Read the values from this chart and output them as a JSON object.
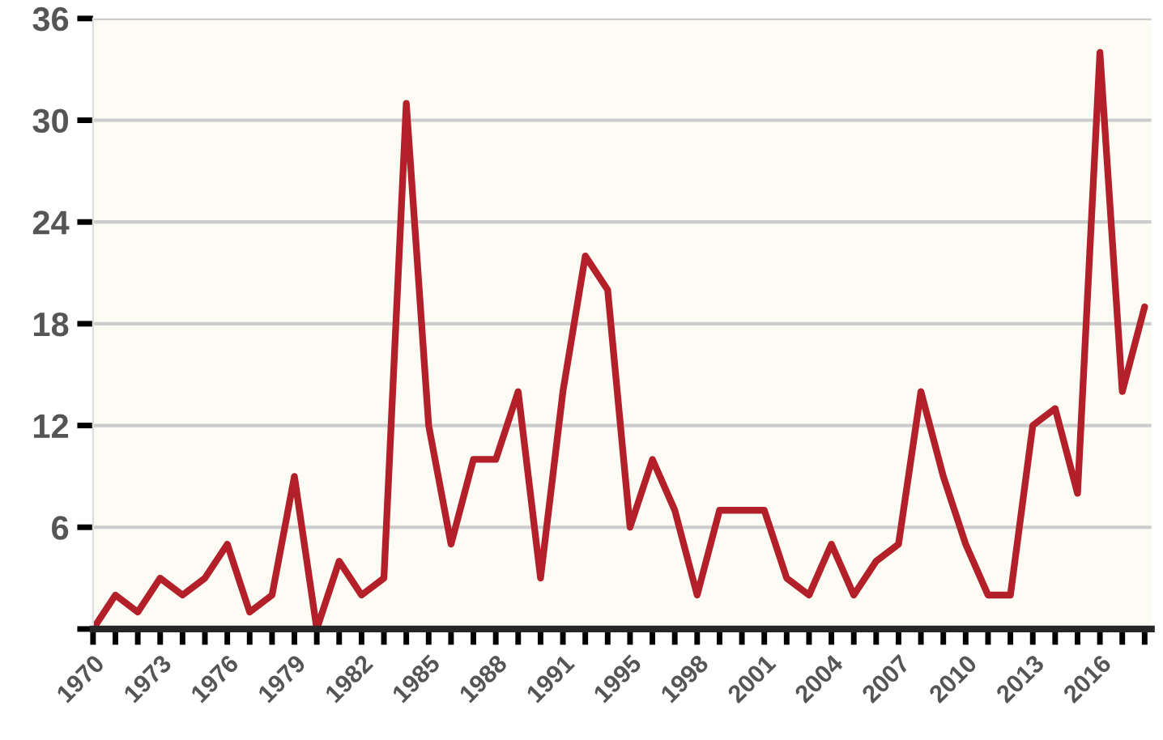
{
  "chart_data": {
    "type": "line",
    "categories": [
      "1970",
      null,
      null,
      "1973",
      null,
      null,
      "1976",
      null,
      null,
      "1979",
      null,
      null,
      "1982",
      null,
      null,
      "1985",
      null,
      null,
      "1988",
      null,
      null,
      "1991",
      null,
      null,
      "1995",
      null,
      null,
      "1998",
      null,
      null,
      "2001",
      null,
      null,
      "2004",
      null,
      null,
      "2007",
      null,
      null,
      "2010",
      null,
      null,
      "2013",
      null,
      null,
      "2016",
      null,
      null
    ],
    "series": [
      {
        "color": "#b3202a",
        "values": [
          0,
          2,
          1,
          3,
          2,
          3,
          5,
          1,
          2,
          9,
          0,
          4,
          2,
          3,
          31,
          12,
          5,
          10,
          10,
          14,
          3,
          14,
          22,
          20,
          6,
          10,
          7,
          2,
          7,
          7,
          7,
          3,
          2,
          5,
          2,
          4,
          5,
          14,
          9,
          5,
          2,
          2,
          12,
          13,
          8,
          34,
          14,
          19
        ]
      }
    ],
    "ylim": [
      0,
      36
    ],
    "yticks": [
      {
        "value": 0,
        "label": null
      },
      6,
      12,
      18,
      24,
      30,
      36
    ],
    "grid": "y",
    "legend": false,
    "line_style": "solid",
    "marker": "none"
  }
}
